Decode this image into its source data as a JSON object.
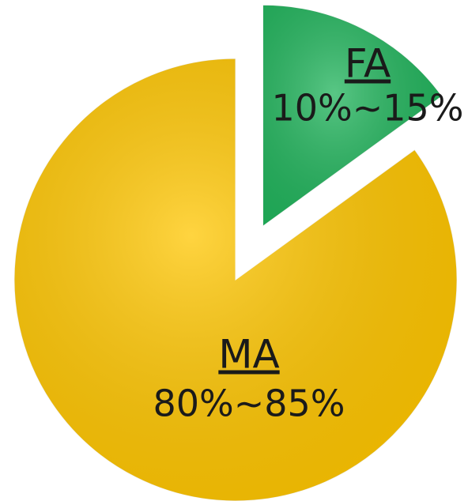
{
  "chart_data": {
    "type": "pie",
    "categories": [
      "FA",
      "MA"
    ],
    "values": [
      15,
      85
    ],
    "value_labels": [
      "10%~15%",
      "80%~85%"
    ],
    "colors": [
      "#21b45c",
      "#ffc600"
    ],
    "explode": [
      true,
      false
    ]
  }
}
